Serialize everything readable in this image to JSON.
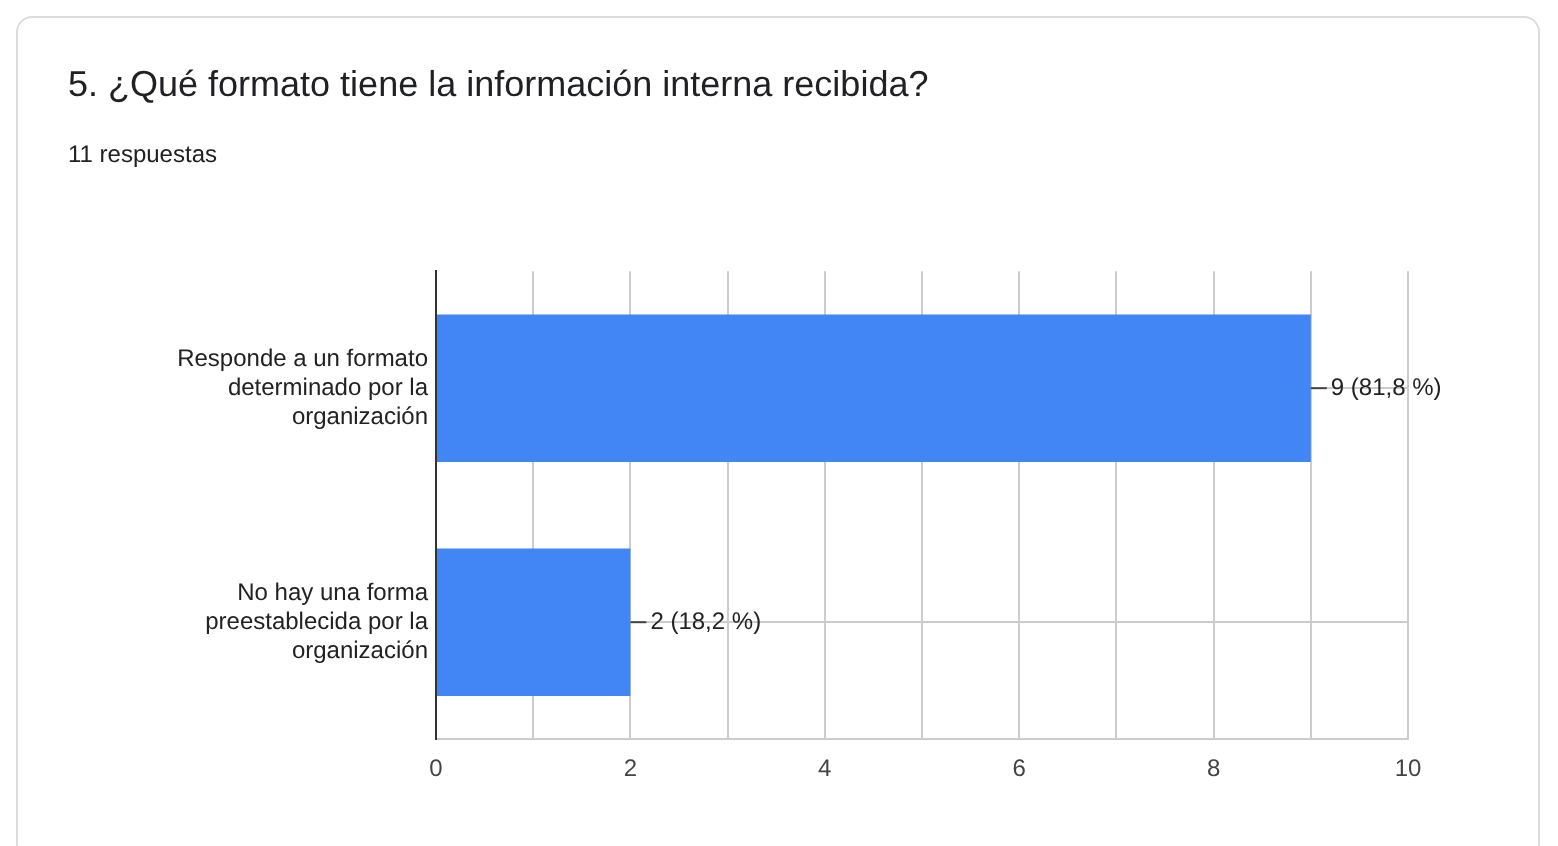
{
  "chart_data": {
    "type": "bar",
    "orientation": "horizontal",
    "title": "5. ¿Qué formato tiene la información interna recibida?",
    "subtitle": "11 respuestas",
    "categories": [
      "Responde a un formato determinado por la organización",
      "No hay una forma preestablecida por la organización"
    ],
    "values": [
      9,
      2
    ],
    "value_labels": [
      "9 (81,8 %)",
      "2 (18,2 %)"
    ],
    "color": "#4285f4",
    "xlim": [
      0,
      10
    ],
    "xticks": [
      0,
      {
        "value": 1,
        "label": null
      },
      2,
      {
        "value": 3,
        "label": null
      },
      4,
      {
        "value": 5,
        "label": null
      },
      6,
      {
        "value": 7,
        "label": null
      },
      8,
      {
        "value": 9,
        "label": null
      },
      10
    ],
    "grid": true,
    "legend": false
  }
}
